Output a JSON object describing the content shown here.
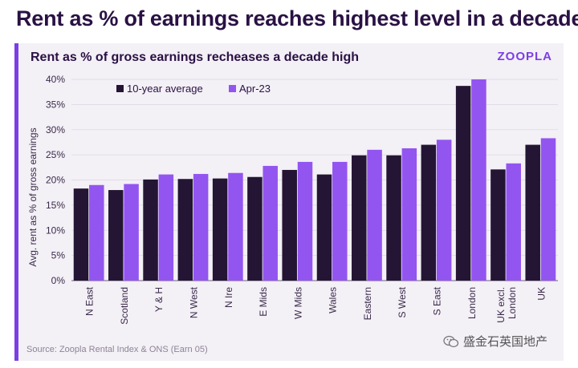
{
  "headline": "Rent as % of earnings reaches highest level in a decade",
  "chart_title": "Rent as % of gross earnings recheases a decade high",
  "brand": "ZOOPLA",
  "source": "Source: Zoopla Rental Index & ONS (Earn 05)",
  "watermark": "盛金石英国地产",
  "colors": {
    "avg": "#231533",
    "apr": "#9355f0",
    "accent": "#7b3fe4"
  },
  "chart_data": {
    "type": "bar",
    "ylabel": "Avg. rent as % of gross earnings",
    "xlabel": "",
    "ylim": [
      0,
      40
    ],
    "yticks": [
      "0%",
      "5%",
      "10%",
      "15%",
      "20%",
      "25%",
      "30%",
      "35%",
      "40%"
    ],
    "legend_position": "top-left",
    "categories": [
      "N East",
      "Scotland",
      "Y & H",
      "N West",
      "N Ire",
      "E Mids",
      "W Mids",
      "Wales",
      "Eastern",
      "S West",
      "S East",
      "London",
      "UK excl. London",
      "UK"
    ],
    "category_lines": [
      [
        "N East"
      ],
      [
        "Scotland"
      ],
      [
        "Y & H"
      ],
      [
        "N West"
      ],
      [
        "N Ire"
      ],
      [
        "E Mids"
      ],
      [
        "W Mids"
      ],
      [
        "Wales"
      ],
      [
        "Eastern"
      ],
      [
        "S West"
      ],
      [
        "S East"
      ],
      [
        "London"
      ],
      [
        "UK excl.",
        "London"
      ],
      [
        "UK"
      ]
    ],
    "series": [
      {
        "name": "10-year average",
        "values": [
          18.3,
          18.0,
          20.1,
          20.2,
          20.3,
          20.6,
          22.0,
          21.1,
          24.9,
          24.9,
          27.0,
          38.7,
          22.1,
          27.0
        ]
      },
      {
        "name": "Apr-23",
        "values": [
          19.0,
          19.2,
          21.1,
          21.2,
          21.4,
          22.8,
          23.6,
          23.6,
          26.0,
          26.3,
          28.0,
          40.0,
          23.3,
          28.3
        ]
      }
    ]
  }
}
